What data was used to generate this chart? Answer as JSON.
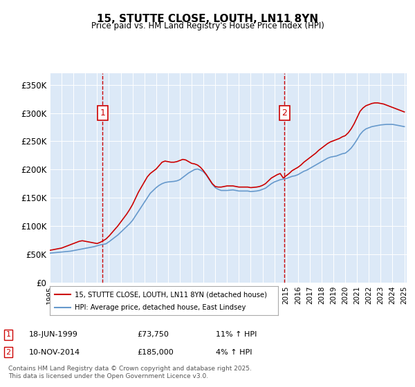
{
  "title": "15, STUTTE CLOSE, LOUTH, LN11 8YN",
  "subtitle": "Price paid vs. HM Land Registry's House Price Index (HPI)",
  "legend_line1": "15, STUTTE CLOSE, LOUTH, LN11 8YN (detached house)",
  "legend_line2": "HPI: Average price, detached house, East Lindsey",
  "annotation1_label": "1",
  "annotation1_date": "18-JUN-1999",
  "annotation1_price": "£73,750",
  "annotation1_hpi": "11% ↑ HPI",
  "annotation2_label": "2",
  "annotation2_date": "10-NOV-2014",
  "annotation2_price": "£185,000",
  "annotation2_hpi": "4% ↑ HPI",
  "footer": "Contains HM Land Registry data © Crown copyright and database right 2025.\nThis data is licensed under the Open Government Licence v3.0.",
  "ylim": [
    0,
    370000
  ],
  "yticks": [
    0,
    50000,
    100000,
    150000,
    200000,
    250000,
    300000,
    350000
  ],
  "ytick_labels": [
    "£0",
    "£50K",
    "£100K",
    "£150K",
    "£200K",
    "£250K",
    "£300K",
    "£350K"
  ],
  "bg_color": "#dce9f7",
  "line_color_red": "#cc0000",
  "line_color_blue": "#6699cc",
  "vline_color": "#cc0000",
  "annotation_box_color": "#cc0000",
  "marker1_x": 1999.47,
  "marker2_x": 2014.86,
  "hpi_x": [
    1995,
    1995.25,
    1995.5,
    1995.75,
    1996,
    1996.25,
    1996.5,
    1996.75,
    1997,
    1997.25,
    1997.5,
    1997.75,
    1998,
    1998.25,
    1998.5,
    1998.75,
    1999,
    1999.25,
    1999.5,
    1999.75,
    2000,
    2000.25,
    2000.5,
    2000.75,
    2001,
    2001.25,
    2001.5,
    2001.75,
    2002,
    2002.25,
    2002.5,
    2002.75,
    2003,
    2003.25,
    2003.5,
    2003.75,
    2004,
    2004.25,
    2004.5,
    2004.75,
    2005,
    2005.25,
    2005.5,
    2005.75,
    2006,
    2006.25,
    2006.5,
    2006.75,
    2007,
    2007.25,
    2007.5,
    2007.75,
    2008,
    2008.25,
    2008.5,
    2008.75,
    2009,
    2009.25,
    2009.5,
    2009.75,
    2010,
    2010.25,
    2010.5,
    2010.75,
    2011,
    2011.25,
    2011.5,
    2011.75,
    2012,
    2012.25,
    2012.5,
    2012.75,
    2013,
    2013.25,
    2013.5,
    2013.75,
    2014,
    2014.25,
    2014.5,
    2014.75,
    2015,
    2015.25,
    2015.5,
    2015.75,
    2016,
    2016.25,
    2016.5,
    2016.75,
    2017,
    2017.25,
    2017.5,
    2017.75,
    2018,
    2018.25,
    2018.5,
    2018.75,
    2019,
    2019.25,
    2019.5,
    2019.75,
    2020,
    2020.25,
    2020.5,
    2020.75,
    2021,
    2021.25,
    2021.5,
    2021.75,
    2022,
    2022.25,
    2022.5,
    2022.75,
    2023,
    2023.25,
    2023.5,
    2023.75,
    2024,
    2024.25,
    2024.5,
    2024.75,
    2025
  ],
  "hpi_y": [
    52000,
    52500,
    53000,
    53500,
    54000,
    54500,
    55000,
    55500,
    56500,
    57500,
    58500,
    59500,
    60500,
    61500,
    62500,
    63500,
    65000,
    66500,
    67500,
    68500,
    72000,
    76000,
    80000,
    84000,
    89000,
    94000,
    99000,
    104000,
    110000,
    118000,
    126000,
    134000,
    142000,
    150000,
    158000,
    163000,
    168000,
    172000,
    175000,
    177000,
    178000,
    178500,
    179000,
    180000,
    182000,
    186000,
    190000,
    194000,
    197000,
    200000,
    201000,
    199000,
    196000,
    190000,
    182000,
    174000,
    168000,
    165000,
    163000,
    163000,
    163000,
    163500,
    164000,
    163000,
    162000,
    162000,
    162000,
    162000,
    161000,
    161500,
    162000,
    163000,
    165000,
    167000,
    171000,
    175000,
    178000,
    180000,
    182000,
    183000,
    184000,
    186000,
    188000,
    189000,
    191000,
    194000,
    197000,
    199000,
    202000,
    205000,
    208000,
    211000,
    214000,
    217000,
    220000,
    222000,
    223000,
    224000,
    226000,
    228000,
    229000,
    233000,
    238000,
    245000,
    253000,
    262000,
    268000,
    272000,
    274000,
    276000,
    277000,
    278000,
    279000,
    279500,
    280000,
    280000,
    280000,
    279000,
    278000,
    277000,
    276000
  ],
  "prop_x": [
    1995,
    1995.25,
    1995.5,
    1995.75,
    1996,
    1996.25,
    1996.5,
    1996.75,
    1997,
    1997.25,
    1997.5,
    1997.75,
    1998,
    1998.25,
    1998.5,
    1998.75,
    1999,
    1999.25,
    1999.5,
    1999.75,
    2000,
    2000.25,
    2000.5,
    2000.75,
    2001,
    2001.25,
    2001.5,
    2001.75,
    2002,
    2002.25,
    2002.5,
    2002.75,
    2003,
    2003.25,
    2003.5,
    2003.75,
    2004,
    2004.25,
    2004.5,
    2004.75,
    2005,
    2005.25,
    2005.5,
    2005.75,
    2006,
    2006.25,
    2006.5,
    2006.75,
    2007,
    2007.25,
    2007.5,
    2007.75,
    2008,
    2008.25,
    2008.5,
    2008.75,
    2009,
    2009.25,
    2009.5,
    2009.75,
    2010,
    2010.25,
    2010.5,
    2010.75,
    2011,
    2011.25,
    2011.5,
    2011.75,
    2012,
    2012.25,
    2012.5,
    2012.75,
    2013,
    2013.25,
    2013.5,
    2013.75,
    2014,
    2014.25,
    2014.5,
    2014.75,
    2015,
    2015.25,
    2015.5,
    2015.75,
    2016,
    2016.25,
    2016.5,
    2016.75,
    2017,
    2017.25,
    2017.5,
    2017.75,
    2018,
    2018.25,
    2018.5,
    2018.75,
    2019,
    2019.25,
    2019.5,
    2019.75,
    2020,
    2020.25,
    2020.5,
    2020.75,
    2021,
    2021.25,
    2021.5,
    2021.75,
    2022,
    2022.25,
    2022.5,
    2022.75,
    2023,
    2023.25,
    2023.5,
    2023.75,
    2024,
    2024.25,
    2024.5,
    2024.75,
    2025
  ],
  "prop_y": [
    57000,
    58000,
    59000,
    60000,
    61000,
    63000,
    65000,
    67000,
    69000,
    71000,
    73000,
    74000,
    73000,
    72000,
    71000,
    70000,
    69000,
    71000,
    73750,
    77000,
    82000,
    88000,
    94000,
    100000,
    107000,
    114000,
    121000,
    129000,
    138000,
    149000,
    160000,
    169000,
    178000,
    187000,
    193000,
    197000,
    201000,
    207000,
    213000,
    215000,
    214000,
    213000,
    213000,
    214000,
    216000,
    218000,
    217000,
    214000,
    211000,
    210000,
    208000,
    204000,
    198000,
    191000,
    183000,
    175000,
    170000,
    169000,
    169000,
    170000,
    171000,
    171000,
    171000,
    170000,
    169000,
    169000,
    169000,
    169000,
    168000,
    168500,
    169000,
    170000,
    172000,
    175000,
    180000,
    185000,
    188000,
    191000,
    193000,
    185000,
    189000,
    193000,
    198000,
    201000,
    204000,
    208000,
    213000,
    217000,
    221000,
    225000,
    229000,
    234000,
    238000,
    242000,
    246000,
    249000,
    251000,
    253000,
    255000,
    258000,
    260000,
    265000,
    272000,
    281000,
    292000,
    303000,
    309000,
    313000,
    315000,
    317000,
    318000,
    318000,
    317000,
    316000,
    314000,
    312000,
    310000,
    308000,
    306000,
    304000,
    302000
  ],
  "xtick_years": [
    1995,
    1996,
    1997,
    1998,
    1999,
    2000,
    2001,
    2002,
    2003,
    2004,
    2005,
    2006,
    2007,
    2008,
    2009,
    2010,
    2011,
    2012,
    2013,
    2014,
    2015,
    2016,
    2017,
    2018,
    2019,
    2020,
    2021,
    2022,
    2023,
    2024,
    2025
  ]
}
